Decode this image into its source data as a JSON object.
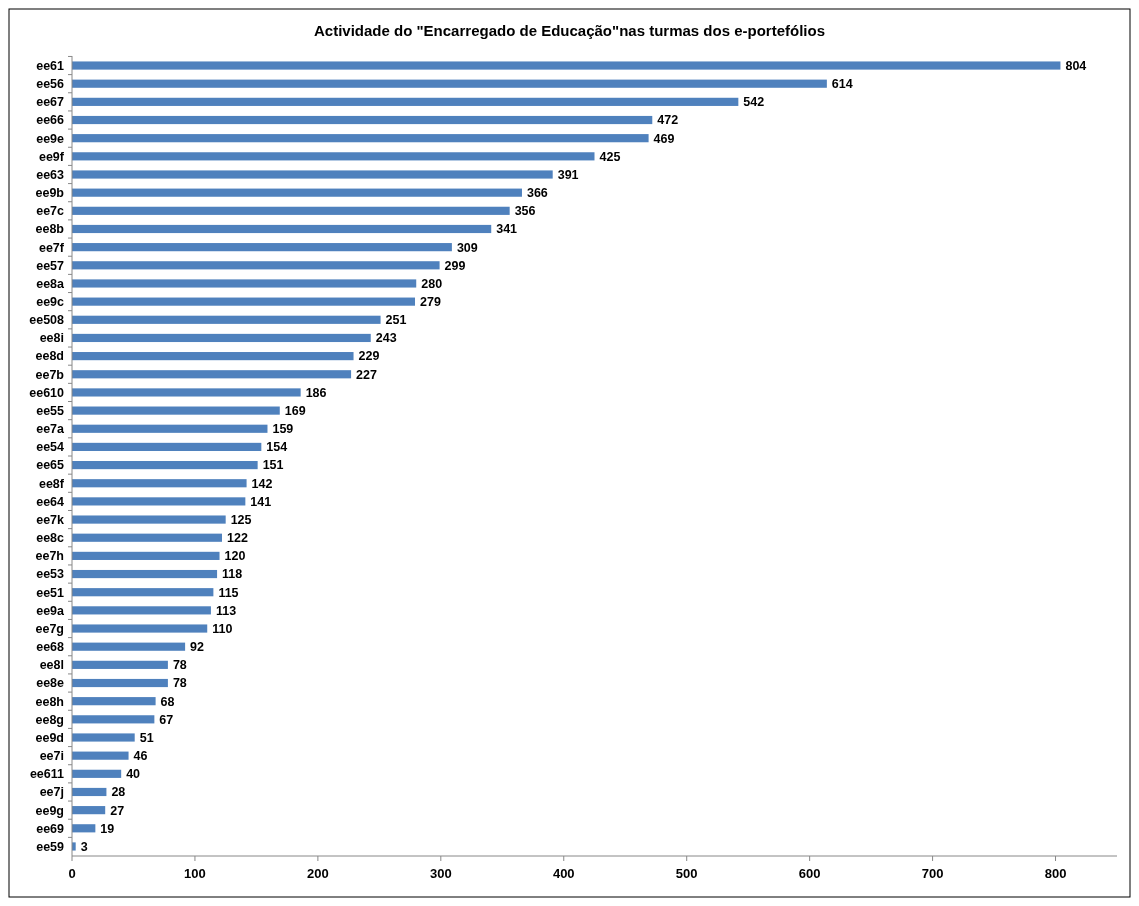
{
  "chart_data": {
    "type": "bar",
    "orientation": "horizontal",
    "title": "Actividade do \"Encarregado de Educação\"nas turmas dos e-portefólios",
    "categories": [
      "ee61",
      "ee56",
      "ee67",
      "ee66",
      "ee9e",
      "ee9f",
      "ee63",
      "ee9b",
      "ee7c",
      "ee8b",
      "ee7f",
      "ee57",
      "ee8a",
      "ee9c",
      "ee508",
      "ee8i",
      "ee8d",
      "ee7b",
      "ee610",
      "ee55",
      "ee7a",
      "ee54",
      "ee65",
      "ee8f",
      "ee64",
      "ee7k",
      "ee8c",
      "ee7h",
      "ee53",
      "ee51",
      "ee9a",
      "ee7g",
      "ee68",
      "ee8l",
      "ee8e",
      "ee8h",
      "ee8g",
      "ee9d",
      "ee7i",
      "ee611",
      "ee7j",
      "ee9g",
      "ee69",
      "ee59"
    ],
    "values": [
      804,
      614,
      542,
      472,
      469,
      425,
      391,
      366,
      356,
      341,
      309,
      299,
      280,
      279,
      251,
      243,
      229,
      227,
      186,
      169,
      159,
      154,
      151,
      142,
      141,
      125,
      122,
      120,
      118,
      115,
      113,
      110,
      92,
      78,
      78,
      68,
      67,
      51,
      46,
      40,
      28,
      27,
      19,
      3
    ],
    "color": "#4f81bd",
    "xlim": [
      0,
      850
    ],
    "xticks": [
      0,
      100,
      200,
      300,
      400,
      500,
      600,
      700,
      800
    ],
    "data_labels": true
  }
}
